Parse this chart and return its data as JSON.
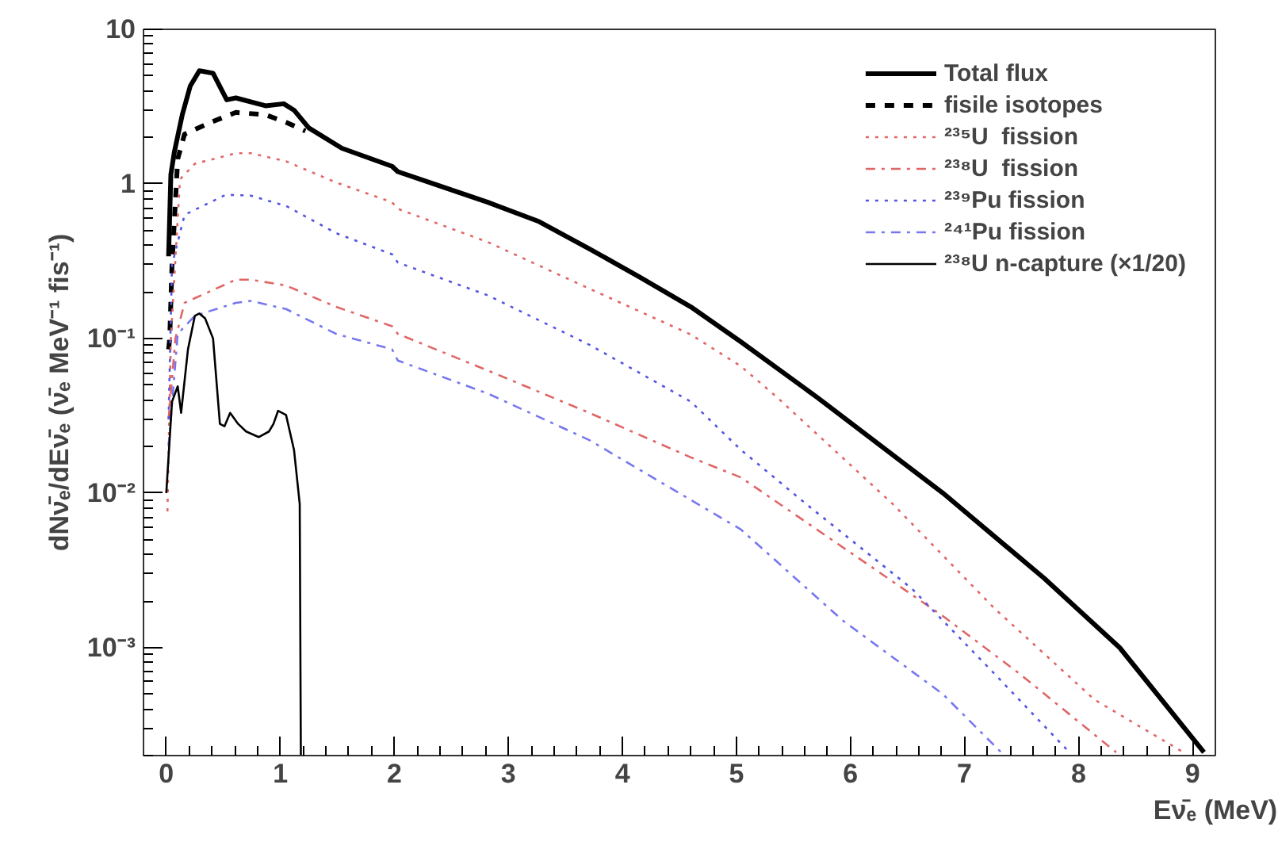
{
  "chart_data": {
    "type": "line",
    "xlabel": "Eν̄ₑ (MeV)",
    "ylabel": "dNν̄ₑ/dEν̄ₑ (ν̄ₑ MeV⁻¹ fis⁻¹)",
    "log": "y",
    "xlim": [
      -0.2,
      9.2
    ],
    "ylim": [
      0.0002,
      10
    ],
    "xticks": [
      0,
      1,
      2,
      3,
      4,
      5,
      6,
      7,
      8,
      9
    ],
    "yticks": [
      {
        "value": 0.001,
        "label": "10⁻³"
      },
      {
        "value": 0.01,
        "label": "10⁻²"
      },
      {
        "value": 0.1,
        "label": "10⁻¹"
      },
      1,
      10
    ],
    "grid": false,
    "legend": "top right",
    "marker": "none",
    "series": [
      {
        "name": "Total flux",
        "color": "#000000",
        "line_style": "solid",
        "x": [
          0.02,
          0.04,
          0.07,
          0.14,
          0.21,
          0.29,
          0.41,
          0.53,
          0.61,
          0.87,
          1.03,
          1.12,
          1.25,
          1.54,
          1.98,
          2.03,
          2.38,
          2.82,
          3.27,
          3.71,
          4.15,
          4.6,
          5.04,
          5.7,
          6.81,
          7.7,
          8.36,
          9.1
        ],
        "values": [
          0.34,
          1.15,
          1.6,
          2.8,
          4.3,
          5.4,
          5.2,
          3.5,
          3.6,
          3.2,
          3.3,
          3.0,
          2.3,
          1.7,
          1.3,
          1.2,
          0.98,
          0.76,
          0.57,
          0.38,
          0.25,
          0.16,
          0.095,
          0.042,
          0.01,
          0.0028,
          0.001,
          0.00021
        ]
      },
      {
        "name": "fisile isotopes",
        "color": "#000000",
        "line_style": "dashed",
        "x": [
          0.02,
          0.03,
          0.05,
          0.1,
          0.16,
          0.39,
          0.61,
          0.87,
          1.05,
          1.22
        ],
        "values": [
          0.085,
          0.1,
          0.3,
          1.45,
          2.1,
          2.5,
          2.9,
          2.8,
          2.5,
          2.2
        ]
      },
      {
        "name": "²³⁵U  fission",
        "color": "#e06666",
        "line_style": "dotted",
        "x": [
          0.01,
          0.04,
          0.12,
          0.25,
          0.61,
          0.74,
          1.05,
          1.49,
          1.98,
          2.03,
          2.82,
          3.71,
          4.6,
          5.04,
          5.35,
          6.37,
          7.26,
          8.14,
          8.92
        ],
        "values": [
          0.0076,
          0.1,
          1.07,
          1.35,
          1.58,
          1.58,
          1.4,
          1.02,
          0.76,
          0.69,
          0.42,
          0.21,
          0.106,
          0.066,
          0.042,
          0.0085,
          0.0018,
          0.00046,
          0.00021
        ]
      },
      {
        "name": "²³⁸U  fission",
        "color": "#e06666",
        "line_style": "dashdot",
        "x": [
          0.02,
          0.08,
          0.16,
          0.61,
          0.74,
          1.05,
          1.49,
          1.98,
          2.03,
          2.82,
          3.71,
          4.6,
          5.04,
          6.19,
          6.81,
          7.48,
          8.33
        ],
        "values": [
          0.03,
          0.1,
          0.17,
          0.24,
          0.24,
          0.22,
          0.16,
          0.12,
          0.107,
          0.062,
          0.033,
          0.017,
          0.0126,
          0.0033,
          0.0016,
          0.00068,
          0.00021
        ]
      },
      {
        "name": "²³⁹Pu fission",
        "color": "#5555e0",
        "line_style": "dotted",
        "x": [
          0.02,
          0.05,
          0.16,
          0.52,
          0.74,
          1.05,
          1.49,
          1.98,
          2.03,
          2.82,
          3.71,
          4.6,
          5.04,
          5.61,
          6.54,
          7.26,
          7.92
        ],
        "values": [
          0.03,
          0.3,
          0.63,
          0.85,
          0.84,
          0.72,
          0.48,
          0.35,
          0.31,
          0.19,
          0.091,
          0.039,
          0.019,
          0.0085,
          0.0024,
          0.00068,
          0.00021
        ]
      },
      {
        "name": "²⁴¹Pu fission",
        "color": "#7777f0",
        "line_style": "dashdot",
        "x": [
          0.02,
          0.1,
          0.25,
          0.61,
          0.74,
          1.05,
          1.49,
          1.98,
          2.03,
          2.82,
          3.71,
          5.04,
          5.93,
          6.81,
          7.35
        ],
        "values": [
          0.02,
          0.107,
          0.14,
          0.17,
          0.175,
          0.155,
          0.107,
          0.085,
          0.072,
          0.044,
          0.022,
          0.0058,
          0.0015,
          0.0005,
          0.0002
        ]
      },
      {
        "name": "²³⁸U n-capture (×1/20)",
        "color": "#000000",
        "line_style": "solid",
        "x": [
          0.0,
          0.05,
          0.1,
          0.13,
          0.19,
          0.25,
          0.29,
          0.34,
          0.41,
          0.47,
          0.51,
          0.56,
          0.63,
          0.7,
          0.81,
          0.9,
          0.94,
          0.98,
          1.05,
          1.12,
          1.17,
          1.18
        ],
        "values": [
          0.01,
          0.039,
          0.049,
          0.033,
          0.085,
          0.14,
          0.145,
          0.135,
          0.1,
          0.028,
          0.027,
          0.033,
          0.028,
          0.025,
          0.023,
          0.025,
          0.028,
          0.034,
          0.032,
          0.019,
          0.0085,
          0.0002
        ]
      }
    ]
  }
}
